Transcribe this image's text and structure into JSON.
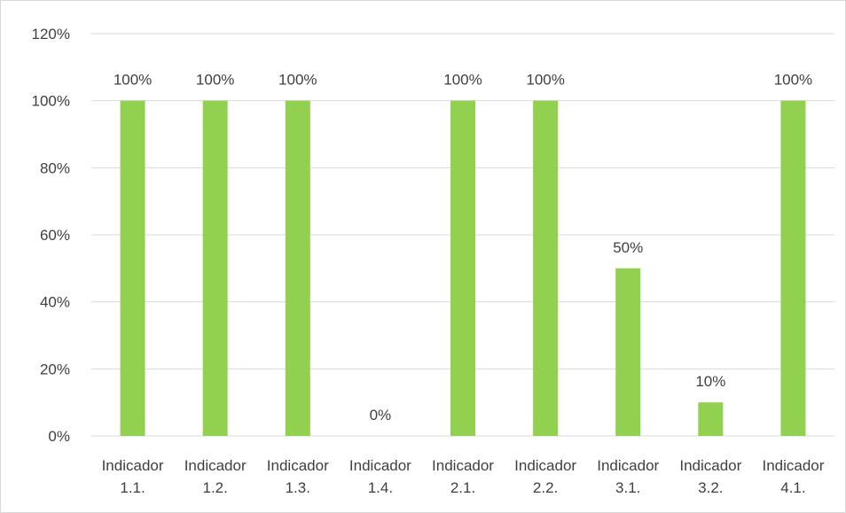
{
  "chart_data": {
    "type": "bar",
    "title": "",
    "xlabel": "",
    "ylabel": "",
    "ylim": [
      0,
      120
    ],
    "y_ticks": [
      0,
      20,
      40,
      60,
      80,
      100,
      120
    ],
    "y_tick_labels": [
      "0%",
      "20%",
      "40%",
      "60%",
      "80%",
      "100%",
      "120%"
    ],
    "categories": [
      [
        "Indicador",
        "1.1."
      ],
      [
        "Indicador",
        "1.2."
      ],
      [
        "Indicador",
        "1.3."
      ],
      [
        "Indicador",
        "1.4."
      ],
      [
        "Indicador",
        "2.1."
      ],
      [
        "Indicador",
        "2.2."
      ],
      [
        "Indicador",
        "3.1."
      ],
      [
        "Indicador",
        "3.2."
      ],
      [
        "Indicador",
        "4.1."
      ]
    ],
    "values": [
      100,
      100,
      100,
      0,
      100,
      100,
      50,
      10,
      100
    ],
    "data_labels": [
      "100%",
      "100%",
      "100%",
      "0%",
      "100%",
      "100%",
      "50%",
      "10%",
      "100%"
    ],
    "bar_color": "#92d050",
    "grid": true,
    "gridline_color": "#d9d9d9",
    "legend": "none"
  }
}
